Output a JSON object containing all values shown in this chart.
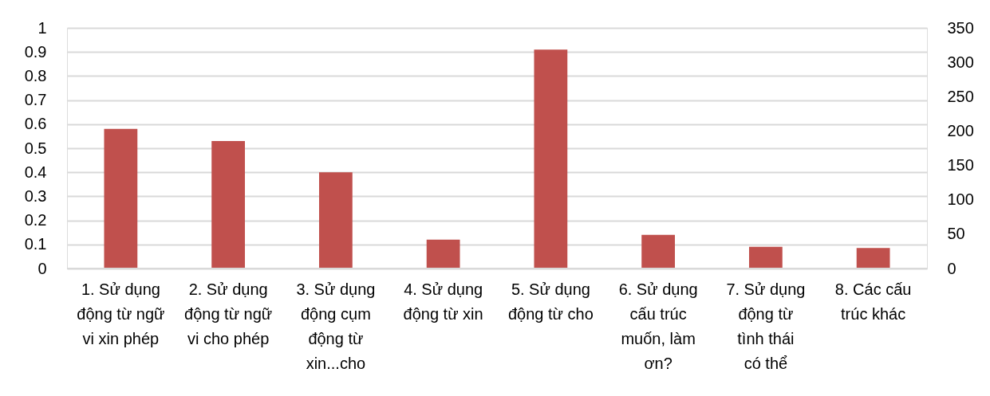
{
  "chart_data": {
    "type": "bar",
    "categories": [
      "1. Sử dụng động từ ngữ vi xin phép",
      "2. Sử dụng động từ ngữ vi cho phép",
      "3. Sử dụng động cụm động từ xin...cho",
      "4. Sử dụng động từ xin",
      "5. Sử dụng động từ cho",
      "6. Sử dụng cấu trúc muốn, làm ơn?",
      "7. Sử dụng động từ tình thái có thể",
      "8. Các cấu trúc khác"
    ],
    "series": [
      {
        "color": "#c0504d",
        "values": [
          0.58,
          0.53,
          0.4,
          0.12,
          0.91,
          0.14,
          0.09,
          0.085
        ]
      }
    ],
    "ylim": [
      0,
      1
    ],
    "yticks": [
      0,
      0.1,
      0.2,
      0.3,
      0.4,
      0.5,
      0.6,
      0.7,
      0.8,
      0.9,
      1
    ],
    "y2lim": [
      0,
      350
    ],
    "y2ticks": [
      0,
      50,
      100,
      150,
      200,
      250,
      300,
      350
    ],
    "grid": "y"
  }
}
